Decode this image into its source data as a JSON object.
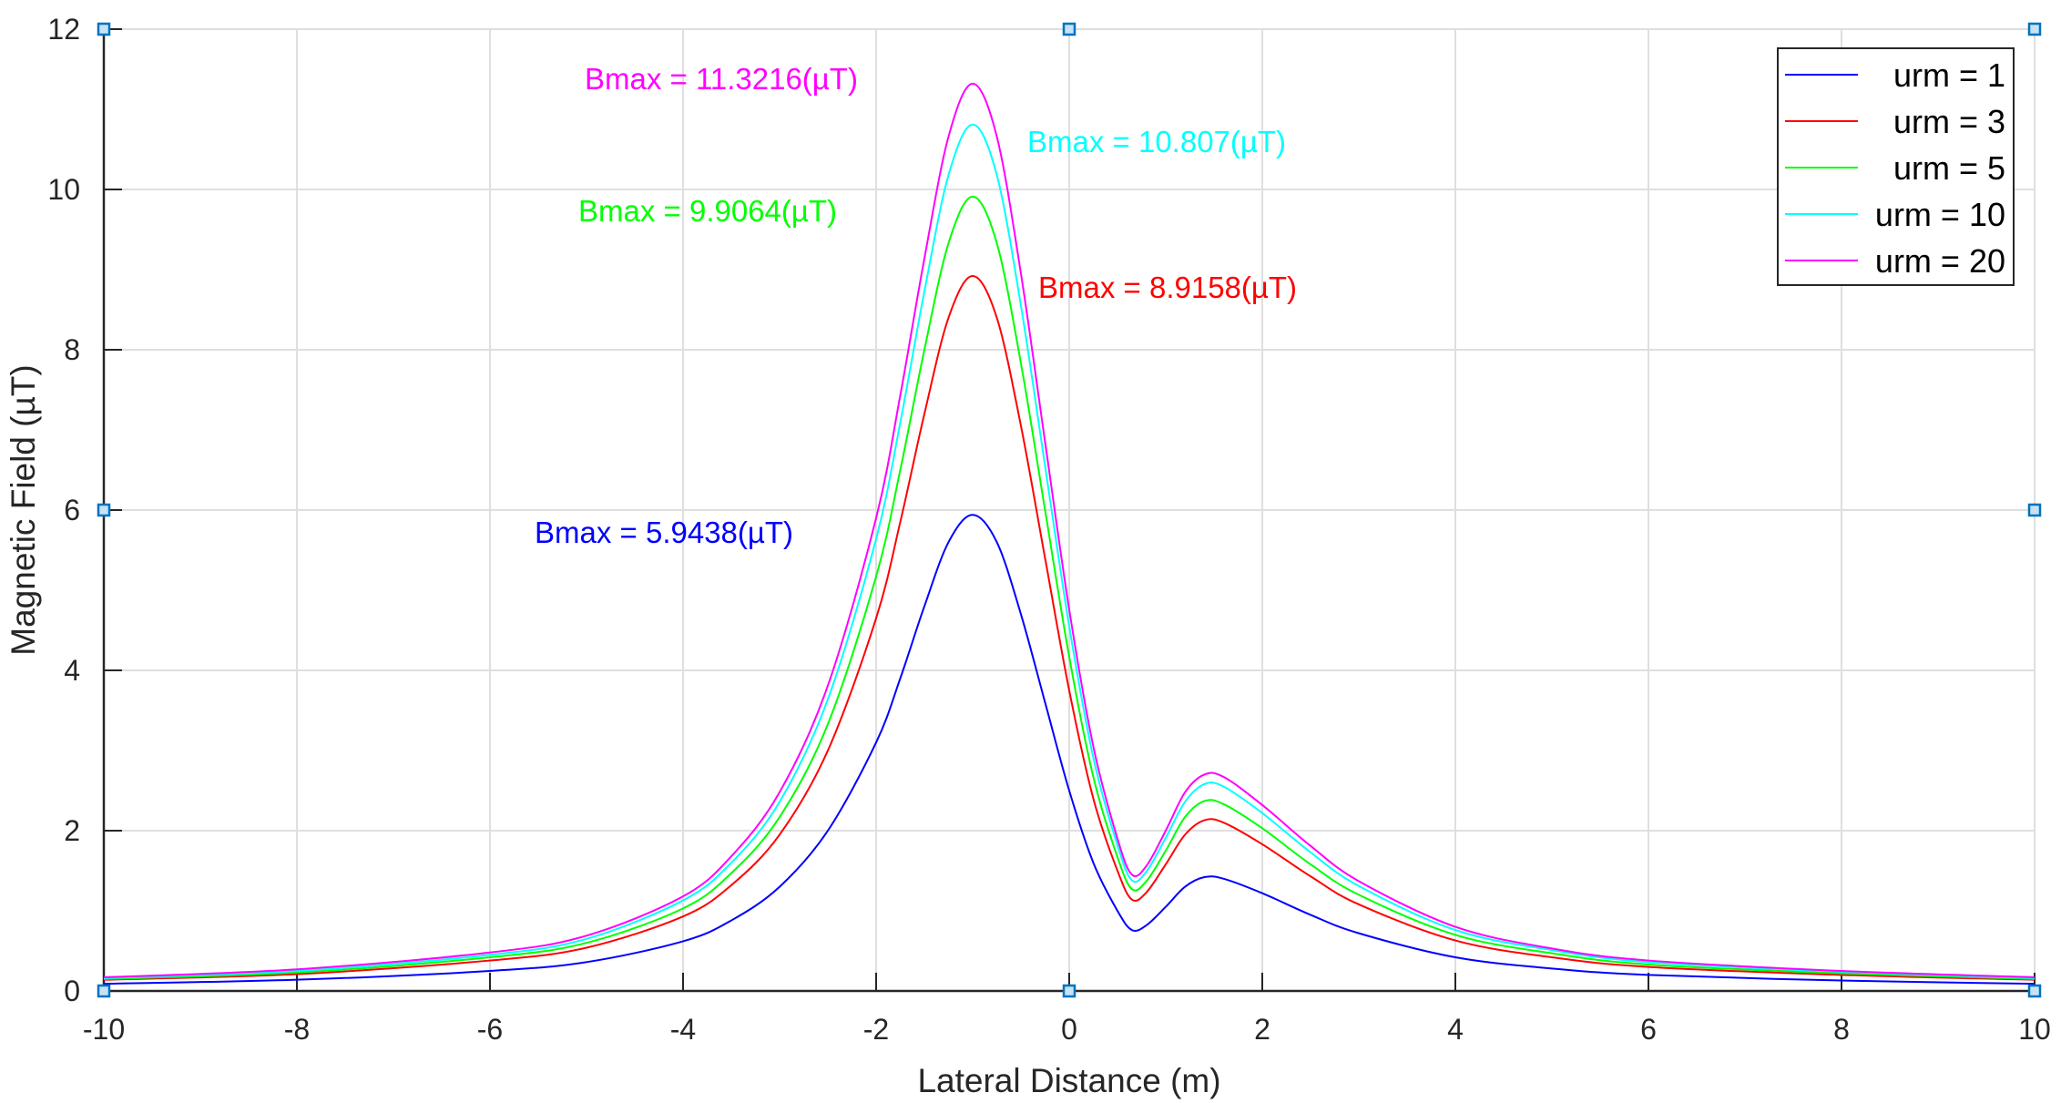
{
  "chart_data": {
    "type": "line",
    "title": "",
    "xlabel": "Lateral Distance (m)",
    "ylabel": "Magnetic Field (µT)",
    "xlim": [
      -10,
      10
    ],
    "ylim": [
      0,
      12
    ],
    "xticks": [
      -10,
      -8,
      -6,
      -4,
      -2,
      0,
      2,
      4,
      6,
      8,
      10
    ],
    "yticks": [
      0,
      2,
      4,
      6,
      8,
      10,
      12
    ],
    "grid": true,
    "legend_placement": "top-right",
    "x": [
      -10,
      -8,
      -6,
      -5,
      -4,
      -3.5,
      -3,
      -2.5,
      -2,
      -1.75,
      -1.5,
      -1.25,
      -1,
      -0.75,
      -0.5,
      -0.25,
      0,
      0.25,
      0.5,
      0.65,
      0.8,
      1,
      1.2,
      1.4,
      1.6,
      2,
      2.5,
      3,
      4,
      5,
      6,
      8,
      10
    ],
    "series": [
      {
        "name": "urm = 1",
        "color": "#0000ff",
        "values": [
          0.09,
          0.14,
          0.25,
          0.36,
          0.62,
          0.88,
          1.3,
          2.0,
          3.1,
          3.9,
          4.8,
          5.6,
          5.94,
          5.6,
          4.7,
          3.6,
          2.5,
          1.6,
          1.0,
          0.76,
          0.82,
          1.05,
          1.3,
          1.42,
          1.4,
          1.22,
          0.95,
          0.72,
          0.42,
          0.28,
          0.2,
          0.13,
          0.09
        ]
      },
      {
        "name": "urm = 3",
        "color": "#ff0000",
        "values": [
          0.14,
          0.21,
          0.38,
          0.54,
          0.93,
          1.32,
          1.95,
          3.0,
          4.65,
          5.85,
          7.2,
          8.4,
          8.92,
          8.4,
          7.05,
          5.4,
          3.75,
          2.4,
          1.5,
          1.14,
          1.23,
          1.58,
          1.95,
          2.13,
          2.1,
          1.83,
          1.43,
          1.08,
          0.63,
          0.42,
          0.3,
          0.2,
          0.14
        ]
      },
      {
        "name": "urm = 5",
        "color": "#00ff00",
        "values": [
          0.15,
          0.23,
          0.42,
          0.6,
          1.03,
          1.47,
          2.17,
          3.33,
          5.17,
          6.5,
          8.0,
          9.33,
          9.91,
          9.33,
          7.83,
          6.0,
          4.17,
          2.67,
          1.67,
          1.27,
          1.37,
          1.75,
          2.17,
          2.37,
          2.33,
          2.03,
          1.58,
          1.2,
          0.7,
          0.47,
          0.33,
          0.22,
          0.15
        ]
      },
      {
        "name": "urm = 10",
        "color": "#00ffff",
        "values": [
          0.16,
          0.25,
          0.45,
          0.65,
          1.13,
          1.6,
          2.36,
          3.64,
          5.64,
          7.09,
          8.73,
          10.18,
          10.81,
          10.18,
          8.55,
          6.55,
          4.55,
          2.91,
          1.82,
          1.38,
          1.49,
          1.91,
          2.36,
          2.58,
          2.55,
          2.22,
          1.73,
          1.31,
          0.76,
          0.51,
          0.36,
          0.24,
          0.16
        ]
      },
      {
        "name": "urm = 20",
        "color": "#ff00ff",
        "values": [
          0.17,
          0.27,
          0.48,
          0.69,
          1.18,
          1.68,
          2.48,
          3.81,
          5.9,
          7.43,
          9.14,
          10.66,
          11.32,
          10.66,
          8.95,
          6.85,
          4.76,
          3.05,
          1.9,
          1.45,
          1.56,
          2.0,
          2.48,
          2.7,
          2.67,
          2.32,
          1.81,
          1.37,
          0.8,
          0.53,
          0.38,
          0.25,
          0.17
        ]
      }
    ],
    "annotations": [
      {
        "text": "Bmax = 11.3216(µT)",
        "color": "#ff00ff"
      },
      {
        "text": "Bmax = 10.807(µT)",
        "color": "#00ffff"
      },
      {
        "text": "Bmax = 9.9064(µT)",
        "color": "#00ff00"
      },
      {
        "text": "Bmax = 8.9158(µT)",
        "color": "#ff0000"
      },
      {
        "text": "Bmax = 5.9438(µT)",
        "color": "#0000ff"
      }
    ],
    "grid_color": "#dfdfdf",
    "handle_color": "#0072bd"
  }
}
